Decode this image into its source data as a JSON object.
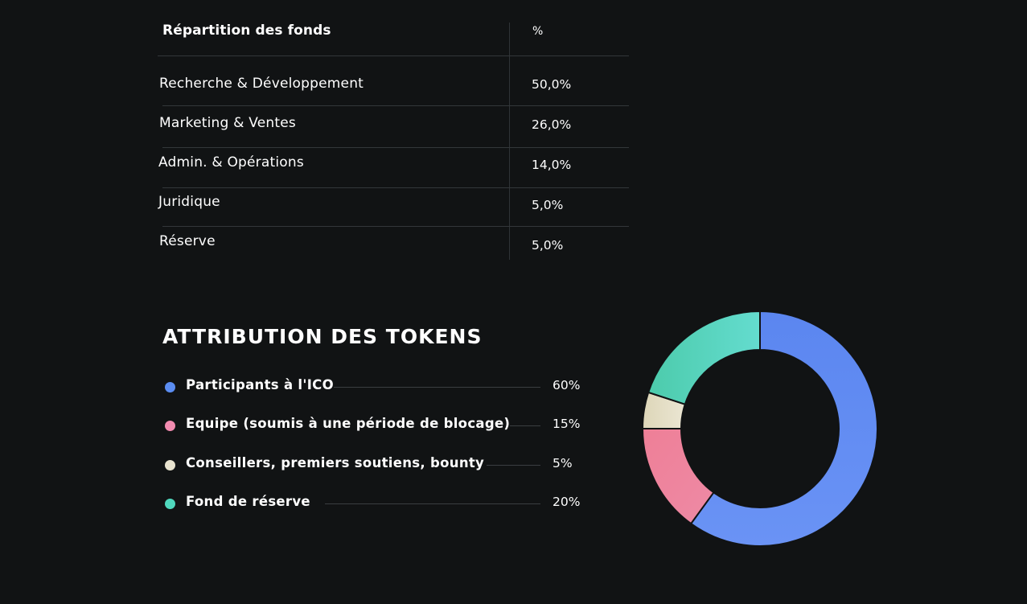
{
  "funds": {
    "header_label": "Répartition des fonds",
    "header_pct": "%",
    "rows": [
      {
        "label": "Recherche & Développement",
        "value": "50,0%"
      },
      {
        "label": "Marketing & Ventes",
        "value": "26,0%"
      },
      {
        "label": "Admin. & Opérations",
        "value": "14,0%"
      },
      {
        "label": "Juridique",
        "value": "5,0%"
      },
      {
        "label": "Réserve",
        "value": "5,0%"
      }
    ]
  },
  "tokens": {
    "title": "ATTRIBUTION DES TOKENS",
    "items": [
      {
        "label": "Participants à l'ICO",
        "value": "60%",
        "color": "#5b8df2"
      },
      {
        "label": "Equipe (soumis à une période de blocage)",
        "value": "15%",
        "color": "#f28bb0"
      },
      {
        "label": "Conseillers, premiers soutiens, bounty",
        "value": "5%",
        "color": "#e8e3cf"
      },
      {
        "label": "Fond de réserve",
        "value": "20%",
        "color": "#4fd8bd"
      }
    ]
  },
  "chart_data": [
    {
      "type": "table",
      "columns": [
        "Répartition des fonds",
        "%"
      ],
      "rows": [
        [
          "Recherche & Développement",
          50.0
        ],
        [
          "Marketing & Ventes",
          26.0
        ],
        [
          "Admin. & Opérations",
          14.0
        ],
        [
          "Juridique",
          5.0
        ],
        [
          "Réserve",
          5.0
        ]
      ]
    },
    {
      "type": "pie",
      "donut": true,
      "title": "ATTRIBUTION DES TOKENS",
      "categories": [
        "Participants à l'ICO",
        "Equipe (soumis à une période de blocage)",
        "Conseillers, premiers soutiens, bounty",
        "Fond de réserve"
      ],
      "values": [
        60,
        15,
        5,
        20
      ],
      "colors": [
        "#5b8df2",
        "#f07e9c",
        "#e4dfc4",
        "#4fd8bd"
      ],
      "legend": "left"
    }
  ]
}
